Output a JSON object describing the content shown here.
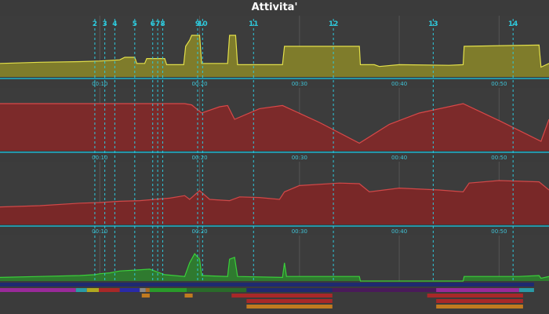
{
  "window": {
    "title": "Attivita'"
  },
  "colors": {
    "background": "#3b3b3b",
    "panel_fill": "#3c3c3c",
    "divider": "#1fb1c9",
    "marker_line": "#2ec9dc",
    "time_label": "#3fc3d6",
    "grid": "#555555",
    "series1_line": "#e3e04a",
    "series1_fill": "#7f7c2b",
    "series2_line": "#d94848",
    "series2_fill": "#7c2a2a",
    "series3_line": "#d24848",
    "series3_fill": "#792828",
    "series4_line": "#3ad03a",
    "series4_fill": "#2f7a2f"
  },
  "chart_data": [
    {
      "type": "area",
      "x": [
        0,
        4,
        8,
        10,
        12,
        12.5,
        13.5,
        13.7,
        14.5,
        14.7,
        16.5,
        16.7,
        18.4,
        18.6,
        19,
        19.2,
        20,
        20.2,
        22.8,
        23,
        23.6,
        23.8,
        28.3,
        28.5,
        36.0,
        36.1,
        37.5,
        38,
        40,
        45,
        46.4,
        46.5,
        54.0,
        54.2,
        55
      ],
      "y": [
        22,
        24,
        25,
        26,
        28,
        32,
        32,
        22,
        22,
        30,
        30,
        20,
        20,
        50,
        60,
        68,
        68,
        22,
        22,
        68,
        68,
        20,
        20,
        50,
        50,
        20,
        20,
        17,
        20,
        19,
        20,
        50,
        52,
        16,
        22
      ],
      "xlim": [
        0,
        55
      ]
    },
    {
      "type": "area",
      "x": [
        0,
        9,
        15,
        18.5,
        19.2,
        20.2,
        22,
        22.8,
        23.5,
        26,
        28.3,
        32,
        36.0,
        39,
        42,
        46.4,
        50,
        54.2,
        55
      ],
      "y": [
        75,
        75,
        75,
        75,
        73,
        60,
        70,
        72,
        50,
        67,
        72,
        45,
        12,
        42,
        60,
        75,
        48,
        15,
        50
      ],
      "xlim": [
        0,
        55
      ]
    },
    {
      "type": "area",
      "x": [
        0,
        4,
        8,
        10,
        12,
        14,
        17,
        18.5,
        19,
        20,
        21,
        23,
        24,
        26,
        28,
        28.5,
        30,
        34,
        36,
        37,
        40,
        44,
        46.4,
        47,
        50,
        54,
        55
      ],
      "y": [
        28,
        30,
        34,
        35,
        37,
        38,
        42,
        46,
        40,
        54,
        40,
        38,
        44,
        43,
        40,
        52,
        62,
        66,
        65,
        52,
        58,
        55,
        52,
        66,
        70,
        68,
        55
      ],
      "xlim": [
        0,
        55
      ]
    },
    {
      "type": "area",
      "x": [
        0,
        4,
        8,
        9.5,
        10,
        11,
        12,
        13.5,
        15,
        16.5,
        18.5,
        19,
        19.5,
        20,
        20.2,
        22.8,
        23,
        23.5,
        23.8,
        28.3,
        28.5,
        28.7,
        36.0,
        36.1,
        46.4,
        46.5,
        52,
        54,
        54.2,
        55
      ],
      "y": [
        8,
        10,
        12,
        14,
        16,
        18,
        22,
        24,
        26,
        14,
        10,
        40,
        60,
        48,
        12,
        10,
        48,
        52,
        10,
        8,
        40,
        10,
        10,
        0,
        0,
        10,
        10,
        12,
        6,
        10
      ],
      "xlim": [
        0,
        55
      ]
    }
  ],
  "axis": {
    "minor_ticks": [
      "00:10",
      "00:20",
      "00:30",
      "00:40",
      "00:50"
    ],
    "tick_minutes": [
      10,
      20,
      30,
      40,
      50
    ]
  },
  "markers": [
    {
      "label": "2",
      "t": 9.5
    },
    {
      "label": "3",
      "t": 10.5
    },
    {
      "label": "4",
      "t": 11.5
    },
    {
      "label": "5",
      "t": 13.5
    },
    {
      "label": "6",
      "t": 15.3
    },
    {
      "label": "7",
      "t": 15.8
    },
    {
      "label": "8",
      "t": 16.3
    },
    {
      "label": "9",
      "t": 19.8
    },
    {
      "label": "10",
      "t": 20.3
    },
    {
      "label": "11",
      "t": 25.4
    },
    {
      "label": "12",
      "t": 33.4
    },
    {
      "label": "13",
      "t": 43.4
    },
    {
      "label": "14",
      "t": 51.4
    }
  ],
  "timeline_bars": [
    {
      "lane": 0,
      "start": 0,
      "end": 53.5,
      "color": "#1f2a70"
    },
    {
      "lane": 1,
      "start": 0,
      "end": 7.6,
      "color": "#9a2a9a"
    },
    {
      "lane": 1,
      "start": 7.6,
      "end": 8.7,
      "color": "#2a9aa6"
    },
    {
      "lane": 1,
      "start": 8.7,
      "end": 9.9,
      "color": "#b0a820"
    },
    {
      "lane": 1,
      "start": 9.9,
      "end": 12.0,
      "color": "#a82828"
    },
    {
      "lane": 1,
      "start": 12.0,
      "end": 14.0,
      "color": "#2a2aa8"
    },
    {
      "lane": 1,
      "start": 14.0,
      "end": 14.6,
      "color": "#888888"
    },
    {
      "lane": 1,
      "start": 14.6,
      "end": 15.0,
      "color": "#b06a20"
    },
    {
      "lane": 1,
      "start": 15.0,
      "end": 18.7,
      "color": "#2a9a2a"
    },
    {
      "lane": 1,
      "start": 18.7,
      "end": 24.7,
      "color": "#2a6a2a"
    },
    {
      "lane": 1,
      "start": 24.7,
      "end": 33.3,
      "color": "#1f2a70"
    },
    {
      "lane": 1,
      "start": 33.3,
      "end": 42.6,
      "color": "#4a1a5a"
    },
    {
      "lane": 1,
      "start": 42.6,
      "end": 43.7,
      "color": "#4a1a5a"
    },
    {
      "lane": 1,
      "start": 43.7,
      "end": 52.0,
      "color": "#9a2a9a"
    },
    {
      "lane": 1,
      "start": 52.0,
      "end": 53.5,
      "color": "#2a9aa6"
    },
    {
      "lane": 2,
      "start": 14.2,
      "end": 15.0,
      "color": "#c07a20"
    },
    {
      "lane": 2,
      "start": 18.5,
      "end": 19.3,
      "color": "#c07a20"
    },
    {
      "lane": 2,
      "start": 23.2,
      "end": 33.3,
      "color": "#a82828"
    },
    {
      "lane": 2,
      "start": 42.8,
      "end": 52.4,
      "color": "#a82828"
    },
    {
      "lane": 3,
      "start": 24.7,
      "end": 33.3,
      "color": "#a82828"
    },
    {
      "lane": 3,
      "start": 43.7,
      "end": 52.4,
      "color": "#a82828"
    },
    {
      "lane": 4,
      "start": 24.7,
      "end": 33.3,
      "color": "#c07a20"
    },
    {
      "lane": 4,
      "start": 43.7,
      "end": 52.4,
      "color": "#c07a20"
    }
  ]
}
